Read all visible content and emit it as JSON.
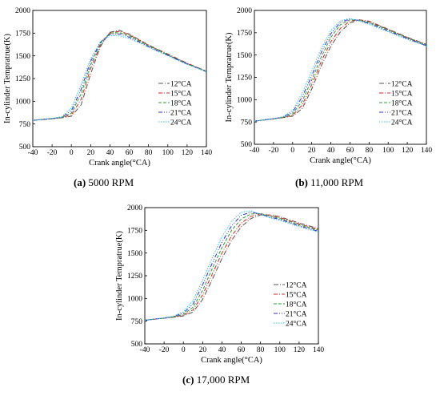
{
  "series_styles": [
    {
      "name": "12°CA",
      "color": "#555555",
      "dash": "6,2,1,2"
    },
    {
      "name": "15°CA",
      "color": "#d62728",
      "dash": "5,2,1,2"
    },
    {
      "name": "18°CA",
      "color": "#2ca02c",
      "dash": "4,2"
    },
    {
      "name": "21°CA",
      "color": "#3a2ccf",
      "dash": "5,2,1,2,1,2"
    },
    {
      "name": "24°CA",
      "color": "#33c4ee",
      "dash": "1.5,1.5"
    }
  ],
  "chart_data": [
    {
      "type": "line",
      "caption_letter": "(a)",
      "caption_text": " 5000 RPM",
      "xlabel": "Crank angle(°CA)",
      "ylabel": "In-cylinder Tempratrue(K)",
      "xlim": [
        -40,
        140
      ],
      "ylim": [
        500,
        2000
      ],
      "xticks": [
        -40,
        -20,
        0,
        20,
        40,
        60,
        80,
        100,
        120,
        140
      ],
      "yticks": [
        500,
        750,
        1000,
        1250,
        1500,
        1750,
        2000
      ],
      "x": [
        -40,
        -20,
        -10,
        0,
        10,
        20,
        30,
        40,
        50,
        60,
        70,
        80,
        100,
        120,
        140
      ],
      "series": [
        {
          "name": "12°CA",
          "values": [
            790,
            808,
            818,
            835,
            960,
            1300,
            1600,
            1760,
            1780,
            1740,
            1680,
            1620,
            1520,
            1420,
            1330
          ]
        },
        {
          "name": "15°CA",
          "values": [
            790,
            808,
            820,
            850,
            1020,
            1360,
            1620,
            1755,
            1770,
            1730,
            1675,
            1615,
            1515,
            1415,
            1330
          ]
        },
        {
          "name": "18°CA",
          "values": [
            790,
            810,
            822,
            870,
            1080,
            1400,
            1640,
            1750,
            1755,
            1720,
            1665,
            1610,
            1510,
            1410,
            1330
          ]
        },
        {
          "name": "21°CA",
          "values": [
            790,
            810,
            825,
            895,
            1130,
            1440,
            1650,
            1740,
            1740,
            1705,
            1655,
            1600,
            1505,
            1410,
            1325
          ]
        },
        {
          "name": "24°CA",
          "values": [
            790,
            812,
            830,
            925,
            1180,
            1470,
            1655,
            1725,
            1720,
            1690,
            1645,
            1595,
            1500,
            1405,
            1325
          ]
        }
      ]
    },
    {
      "type": "line",
      "caption_letter": "(b)",
      "caption_text": " 11,000 RPM",
      "xlabel": "Crank angle(°CA)",
      "ylabel": "In-cylinder Tempratrue(K)",
      "xlim": [
        -40,
        140
      ],
      "ylim": [
        500,
        2000
      ],
      "xticks": [
        -40,
        -20,
        0,
        20,
        40,
        60,
        80,
        100,
        120,
        140
      ],
      "yticks": [
        500,
        750,
        1000,
        1250,
        1500,
        1750,
        2000
      ],
      "x": [
        -40,
        -20,
        -10,
        0,
        10,
        20,
        30,
        40,
        50,
        60,
        70,
        80,
        100,
        120,
        140
      ],
      "series": [
        {
          "name": "12°CA",
          "values": [
            760,
            785,
            798,
            815,
            900,
            1120,
            1380,
            1600,
            1760,
            1860,
            1895,
            1880,
            1790,
            1700,
            1620
          ]
        },
        {
          "name": "15°CA",
          "values": [
            760,
            785,
            800,
            825,
            940,
            1170,
            1430,
            1650,
            1800,
            1880,
            1895,
            1875,
            1785,
            1695,
            1615
          ]
        },
        {
          "name": "18°CA",
          "values": [
            760,
            786,
            802,
            840,
            985,
            1220,
            1480,
            1700,
            1840,
            1895,
            1890,
            1865,
            1780,
            1690,
            1610
          ]
        },
        {
          "name": "21°CA",
          "values": [
            760,
            787,
            805,
            860,
            1030,
            1270,
            1530,
            1740,
            1865,
            1905,
            1885,
            1855,
            1770,
            1685,
            1605
          ]
        },
        {
          "name": "24°CA",
          "values": [
            760,
            788,
            810,
            880,
            1075,
            1320,
            1575,
            1775,
            1885,
            1910,
            1880,
            1845,
            1760,
            1675,
            1600
          ]
        }
      ]
    },
    {
      "type": "line",
      "caption_letter": "(c)",
      "caption_text": " 17,000 RPM",
      "xlabel": "Crank angle(°CA)",
      "ylabel": "In-cylinder Tempratrue(K)",
      "xlim": [
        -40,
        140
      ],
      "ylim": [
        500,
        2000
      ],
      "xticks": [
        -40,
        -20,
        0,
        20,
        40,
        60,
        80,
        100,
        120,
        140
      ],
      "yticks": [
        500,
        750,
        1000,
        1250,
        1500,
        1750,
        2000
      ],
      "x": [
        -40,
        -20,
        -10,
        0,
        10,
        20,
        30,
        40,
        50,
        60,
        70,
        80,
        90,
        100,
        120,
        140
      ],
      "series": [
        {
          "name": "12°CA",
          "values": [
            760,
            782,
            795,
            808,
            850,
            990,
            1210,
            1440,
            1640,
            1790,
            1880,
            1920,
            1920,
            1900,
            1830,
            1770
          ]
        },
        {
          "name": "15°CA",
          "values": [
            760,
            783,
            797,
            815,
            875,
            1040,
            1270,
            1500,
            1690,
            1830,
            1905,
            1930,
            1915,
            1890,
            1820,
            1760
          ]
        },
        {
          "name": "18°CA",
          "values": [
            760,
            784,
            800,
            825,
            905,
            1090,
            1330,
            1560,
            1750,
            1875,
            1930,
            1935,
            1905,
            1880,
            1810,
            1750
          ]
        },
        {
          "name": "21°CA",
          "values": [
            760,
            785,
            803,
            840,
            940,
            1150,
            1390,
            1620,
            1800,
            1915,
            1950,
            1930,
            1895,
            1870,
            1800,
            1740
          ]
        },
        {
          "name": "24°CA",
          "values": [
            760,
            786,
            806,
            855,
            980,
            1200,
            1450,
            1680,
            1850,
            1950,
            1965,
            1925,
            1885,
            1860,
            1790,
            1730
          ]
        }
      ]
    }
  ]
}
